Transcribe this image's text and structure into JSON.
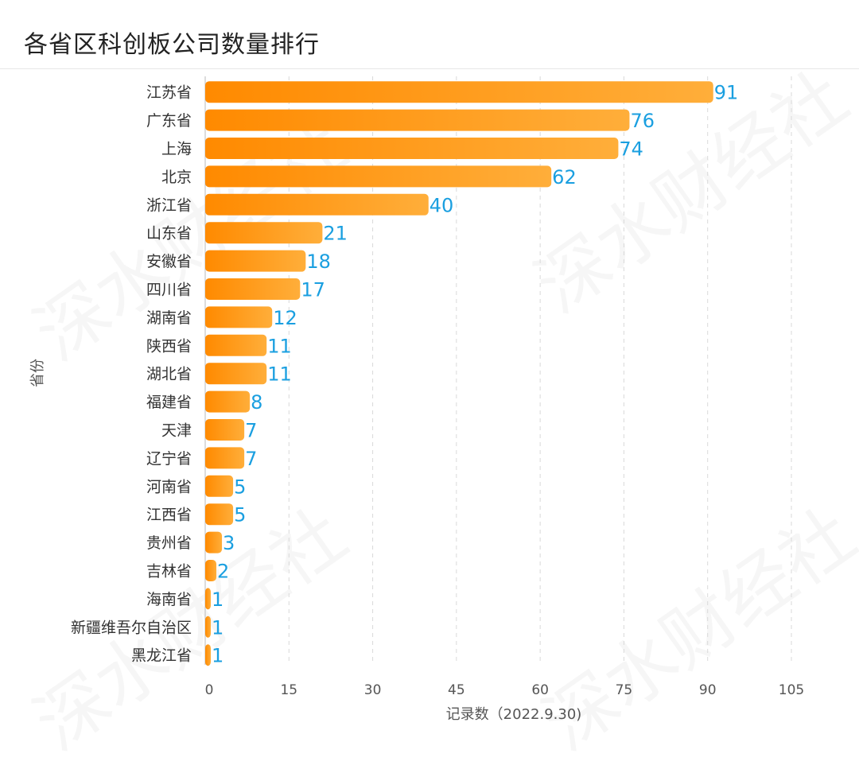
{
  "header": {
    "title": "各省区科创板公司数量排行"
  },
  "watermark": {
    "text": "深水财经社"
  },
  "colors": {
    "bar_start": "#ff8a00",
    "bar_end": "#ffae3a",
    "value_label": "#1a9fe0",
    "category_label": "#333333",
    "tick_label": "#555555",
    "grid": "#d9d9d9"
  },
  "chart_data": {
    "type": "bar",
    "orientation": "horizontal",
    "title": "各省区科创板公司数量排行",
    "ylabel": "省份",
    "xlabel": "记录数（2022.9.30)",
    "xlim": [
      0,
      105
    ],
    "xticks": [
      0,
      15,
      30,
      45,
      60,
      75,
      90,
      105
    ],
    "grid": true,
    "categories": [
      "江苏省",
      "广东省",
      "上海",
      "北京",
      "浙江省",
      "山东省",
      "安徽省",
      "四川省",
      "湖南省",
      "陕西省",
      "湖北省",
      "福建省",
      "天津",
      "辽宁省",
      "河南省",
      "江西省",
      "贵州省",
      "吉林省",
      "海南省",
      "新疆维吾尔自治区",
      "黑龙江省"
    ],
    "values": [
      91,
      76,
      74,
      62,
      40,
      21,
      18,
      17,
      12,
      11,
      11,
      8,
      7,
      7,
      5,
      5,
      3,
      2,
      1,
      1,
      1
    ]
  }
}
